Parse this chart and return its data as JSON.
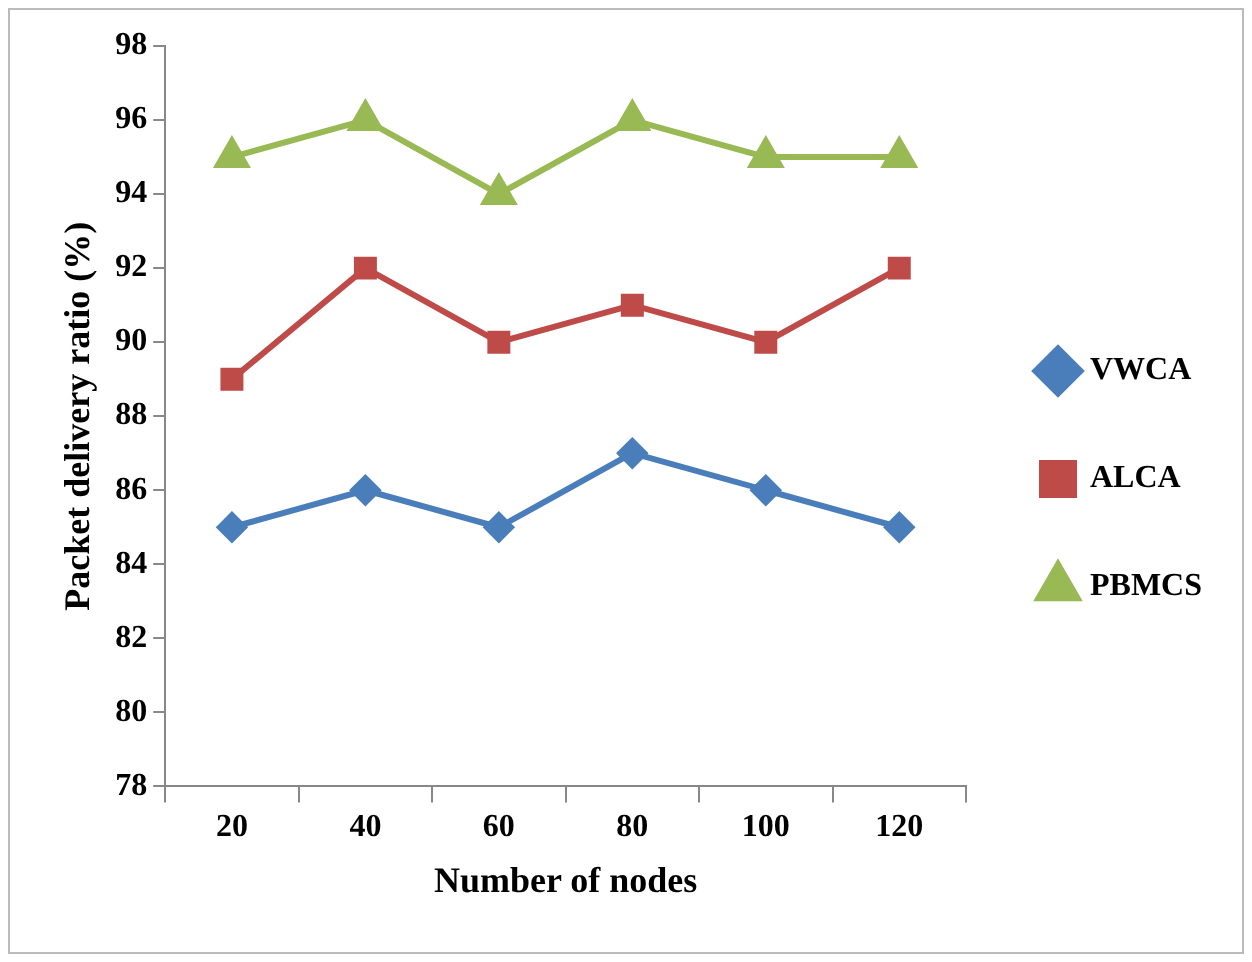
{
  "chart_data": {
    "type": "line",
    "xlabel": "Number of nodes",
    "ylabel": "Packet delivery ratio (%)",
    "categories": [
      "20",
      "40",
      "60",
      "80",
      "100",
      "120"
    ],
    "series": [
      {
        "name": "VWCA",
        "color": "#4a7ebb",
        "marker": "diamond",
        "values": [
          85,
          86,
          85,
          87,
          86,
          85
        ]
      },
      {
        "name": "ALCA",
        "color": "#be4b48",
        "marker": "square",
        "values": [
          89,
          92,
          90,
          91,
          90,
          92
        ]
      },
      {
        "name": "PBMCS",
        "color": "#98b954",
        "marker": "triangle",
        "values": [
          95,
          96,
          94,
          96,
          95,
          95
        ]
      }
    ],
    "ylim": [
      78,
      98
    ],
    "yticks": [
      78,
      80,
      82,
      84,
      86,
      88,
      90,
      92,
      94,
      96,
      98
    ],
    "grid": false,
    "legend": "right",
    "line_style": "solid"
  }
}
